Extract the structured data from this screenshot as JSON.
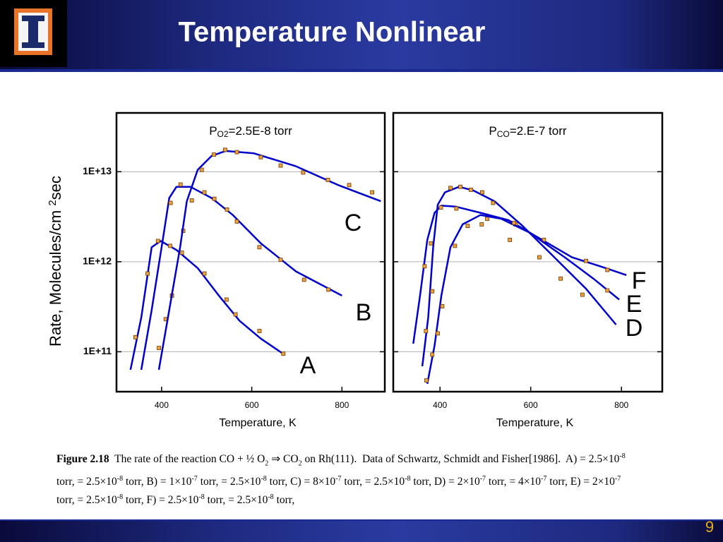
{
  "slide": {
    "title": "Temperature Nonlinear",
    "page": "9",
    "caption": [
      {
        "text": "Figure 2.18",
        "style": "b"
      },
      {
        "text": "  The rate of the reaction CO + ½ O"
      },
      {
        "text": "2",
        "style": "sub"
      },
      {
        "text": " ⇒ CO"
      },
      {
        "text": "2",
        "style": "sub"
      },
      {
        "text": " on Rh(111).  Data of Schwartz, Schmidt and Fisher[1986].  A) = 2.5×10"
      },
      {
        "text": "-8",
        "style": "sup"
      },
      {
        "text": " torr, = 2.5×10"
      },
      {
        "text": "-8",
        "style": "sup"
      },
      {
        "text": " torr, B) = 1×10"
      },
      {
        "text": "-7",
        "style": "sup"
      },
      {
        "text": " torr, = 2.5×10"
      },
      {
        "text": "-8",
        "style": "sup"
      },
      {
        "text": " torr, C) = 8×10"
      },
      {
        "text": "-7",
        "style": "sup"
      },
      {
        "text": " torr, = 2.5×10"
      },
      {
        "text": "-8",
        "style": "sup"
      },
      {
        "text": " torr, D) = 2×10"
      },
      {
        "text": "-7",
        "style": "sup"
      },
      {
        "text": " torr, = 4×10"
      },
      {
        "text": "-7",
        "style": "sup"
      },
      {
        "text": " torr, E) = 2×10"
      },
      {
        "text": "-7",
        "style": "sup"
      },
      {
        "text": " torr, = 2.5×10"
      },
      {
        "text": "-8",
        "style": "sup"
      },
      {
        "text": " torr, F) = 2.5×10"
      },
      {
        "text": "-8",
        "style": "sup"
      },
      {
        "text": " torr, = 2.5×10"
      },
      {
        "text": "-8",
        "style": "sup"
      },
      {
        "text": " torr,"
      }
    ]
  },
  "chart_data": [
    {
      "type": "line",
      "title_parts": [
        "P",
        "O2",
        "=2.5E-8 torr"
      ],
      "xlabel": "Temperature, K",
      "ylabel_parts": [
        "Rate, Molecules/cm ",
        "2",
        "sec"
      ],
      "xlim": [
        300,
        895
      ],
      "xticks": [
        400,
        600,
        800
      ],
      "ylim": [
        36000000000.0,
        45000000000000.0
      ],
      "log_y": true,
      "grid": true,
      "show_ytick_labels": true,
      "yticks": [
        {
          "value": 100000000000.0,
          "label": "1E+11"
        },
        {
          "value": 1000000000000.0,
          "label": "1E+12"
        },
        {
          "value": 10000000000000.0,
          "label": "1E+13"
        }
      ],
      "series": [
        {
          "name": "A",
          "color": "#0000cc",
          "point_color": "#f0a040",
          "x": [
            331,
            355,
            378,
            398,
            433,
            480,
            527,
            573,
            620,
            672
          ],
          "values": [
            63000000000.0,
            240000000000.0,
            1450000000000.0,
            1700000000000.0,
            1350000000000.0,
            850000000000.0,
            420000000000.0,
            220000000000.0,
            140000000000.0,
            93000000000.0
          ],
          "point_x": [
            342,
            369,
            392,
            419,
            445,
            495,
            544,
            564,
            617,
            670
          ],
          "point_values": [
            145000000000.0,
            740000000000.0,
            1700000000000.0,
            1500000000000.0,
            1260000000000.0,
            740000000000.0,
            380000000000.0,
            260000000000.0,
            170000000000.0,
            95000000000.0
          ]
        },
        {
          "name": "B",
          "color": "#0000cc",
          "point_color": "#f0a040",
          "x": [
            355,
            378,
            405,
            417,
            433,
            464,
            511,
            558,
            620,
            698,
            800
          ],
          "values": [
            63000000000.0,
            290000000000.0,
            2100000000000.0,
            5100000000000.0,
            6800000000000.0,
            6800000000000.0,
            5100000000000.0,
            3300000000000.0,
            1600000000000.0,
            780000000000.0,
            420000000000.0
          ],
          "point_x": [
            394,
            409,
            423,
            448,
            467,
            495,
            517,
            545,
            567,
            617,
            664,
            716,
            770
          ],
          "point_values": [
            110000000000.0,
            230000000000.0,
            420000000000.0,
            2200000000000.0,
            4800000000000.0,
            5900000000000.0,
            5000000000000.0,
            3800000000000.0,
            2800000000000.0,
            1450000000000.0,
            1050000000000.0,
            630000000000.0,
            490000000000.0
          ]
        },
        {
          "name": "C",
          "color": "#0000cc",
          "point_color": "#f0a040",
          "x": [
            394,
            417,
            441,
            456,
            480,
            511,
            542,
            605,
            698,
            792,
            886
          ],
          "values": [
            63000000000.0,
            290000000000.0,
            1450000000000.0,
            4700000000000.0,
            10500000000000.0,
            15000000000000.0,
            17000000000000.0,
            16000000000000.0,
            11500000000000.0,
            7100000000000.0,
            4700000000000.0
          ],
          "point_x": [
            420,
            442,
            489,
            516,
            541,
            567,
            620,
            664,
            714,
            769,
            816,
            867
          ],
          "point_values": [
            4500000000000.0,
            7200000000000.0,
            10500000000000.0,
            15500000000000.0,
            17500000000000.0,
            16500000000000.0,
            14500000000000.0,
            11700000000000.0,
            9800000000000.0,
            8100000000000.0,
            7100000000000.0,
            5900000000000.0
          ]
        }
      ]
    },
    {
      "type": "line",
      "title_parts": [
        "P",
        "CO",
        "=2.E-7 torr"
      ],
      "xlabel": "Temperature, K",
      "xlim": [
        297,
        890
      ],
      "xticks": [
        400,
        600,
        800
      ],
      "ylim": [
        36000000000.0,
        45000000000000.0
      ],
      "log_y": true,
      "grid": true,
      "show_ytick_labels": false,
      "yticks": [
        100000000000.0,
        1000000000000.0,
        10000000000000.0
      ],
      "series": [
        {
          "name": "F",
          "color": "#0000cc",
          "point_color": "#f0a040",
          "x": [
            341,
            356,
            372,
            388,
            403,
            434,
            489,
            551,
            613,
            691,
            753,
            811
          ],
          "values": [
            123000000000.0,
            420000000000.0,
            1750000000000.0,
            3500000000000.0,
            4200000000000.0,
            4100000000000.0,
            3500000000000.0,
            2900000000000.0,
            1900000000000.0,
            1120000000000.0,
            890000000000.0,
            710000000000.0
          ],
          "point_x": [
            366,
            380,
            402,
            436,
            504,
            567,
            629,
            722,
            769
          ],
          "point_values": [
            890000000000.0,
            1600000000000.0,
            4000000000000.0,
            3900000000000.0,
            3000000000000.0,
            2600000000000.0,
            1750000000000.0,
            1020000000000.0,
            810000000000.0
          ]
        },
        {
          "name": "E",
          "color": "#0000cc",
          "point_color": "#f0a040",
          "x": [
            372,
            388,
            403,
            423,
            450,
            489,
            535,
            598,
            675,
            738,
            795
          ],
          "values": [
            44000000000.0,
            117000000000.0,
            420000000000.0,
            1450000000000.0,
            2600000000000.0,
            3300000000000.0,
            3000000000000.0,
            2100000000000.0,
            1120000000000.0,
            650000000000.0,
            380000000000.0
          ],
          "point_x": [
            370,
            383,
            395,
            405,
            433,
            461,
            492,
            554,
            619,
            666,
            714,
            769
          ],
          "point_values": [
            48000000000.0,
            93000000000.0,
            160000000000.0,
            320000000000.0,
            1500000000000.0,
            2500000000000.0,
            2600000000000.0,
            1750000000000.0,
            1120000000000.0,
            650000000000.0,
            430000000000.0,
            480000000000.0
          ]
        },
        {
          "name": "D",
          "color": "#0000cc",
          "point_color": "#f0a040",
          "x": [
            361,
            374,
            385,
            395,
            411,
            442,
            473,
            520,
            582,
            644,
            722,
            788
          ],
          "values": [
            69000000000.0,
            240000000000.0,
            1450000000000.0,
            4300000000000.0,
            5900000000000.0,
            6800000000000.0,
            6200000000000.0,
            4700000000000.0,
            2500000000000.0,
            1230000000000.0,
            500000000000.0,
            200000000000.0
          ],
          "point_x": [
            369,
            383,
            423,
            445,
            468,
            493,
            517,
            563
          ],
          "point_values": [
            170000000000.0,
            470000000000.0,
            6600000000000.0,
            6800000000000.0,
            6300000000000.0,
            5900000000000.0,
            4500000000000.0,
            2700000000000.0
          ]
        }
      ]
    }
  ]
}
